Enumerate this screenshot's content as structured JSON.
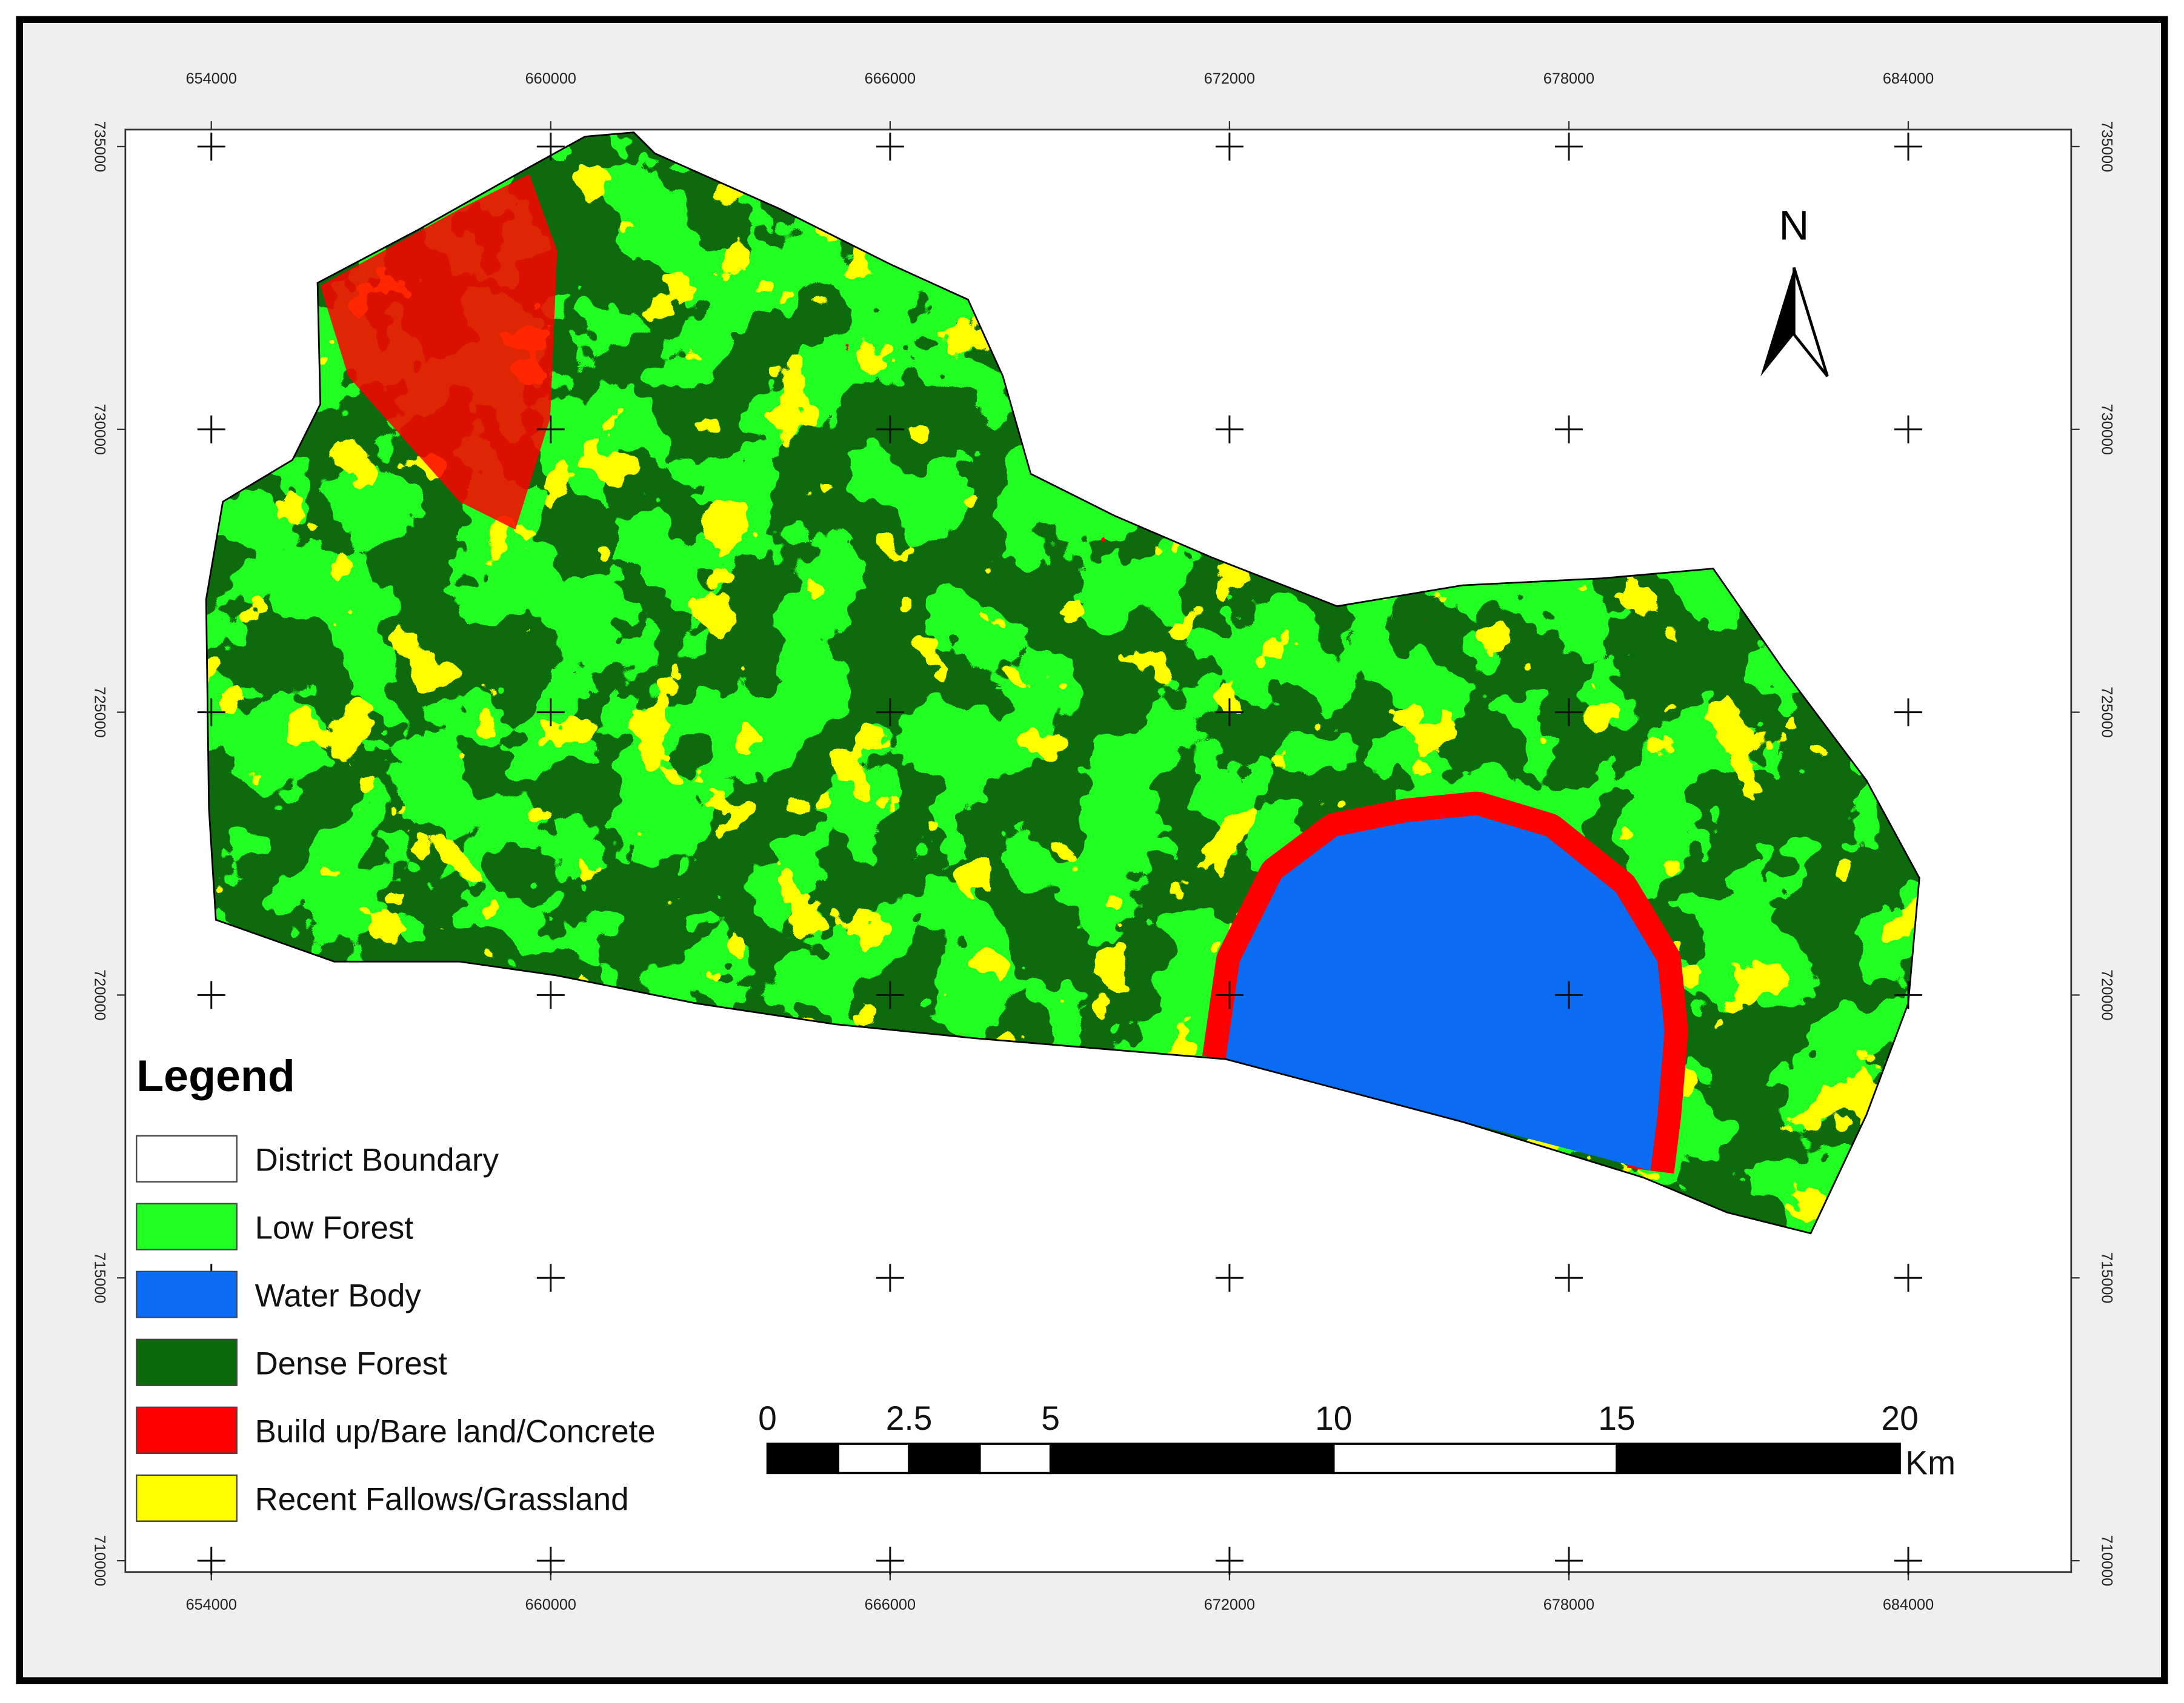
{
  "map": {
    "type": "land-cover-map",
    "xlim": [
      652480,
      686880
    ],
    "ylim": [
      709800,
      735300
    ],
    "xticks": [
      654000,
      660000,
      666000,
      672000,
      678000,
      684000
    ],
    "yticks": [
      710000,
      715000,
      720000,
      725000,
      730000,
      735000
    ],
    "north": "N",
    "legend": {
      "title": "Legend",
      "items": [
        {
          "name": "District Boundary",
          "color": "#ffffff"
        },
        {
          "name": "Low Forest",
          "color": "#22ff22"
        },
        {
          "name": "Water Body",
          "color": "#0a6cf2"
        },
        {
          "name": "Dense Forest",
          "color": "#0a6a0a"
        },
        {
          "name": "Build up/Bare land/Concrete",
          "color": "#ff0000"
        },
        {
          "name": "Recent Fallows/Grassland",
          "color": "#ffff00"
        }
      ]
    },
    "scale_bar": {
      "ticks": [
        0,
        2.5,
        5,
        10,
        15,
        20
      ],
      "unit": "Km"
    }
  }
}
